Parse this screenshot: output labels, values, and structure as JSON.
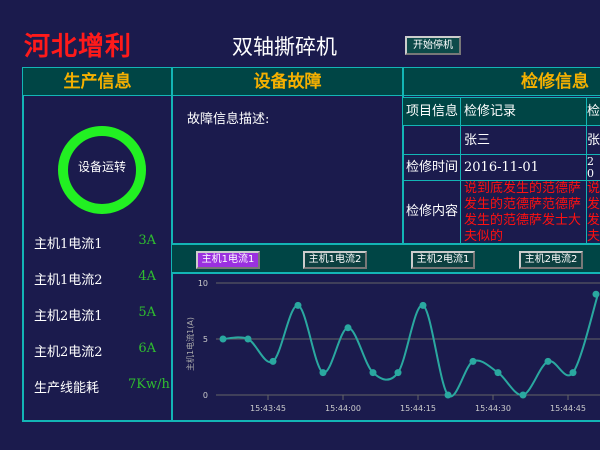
{
  "header": {
    "brand": "河北增利",
    "title": "双轴撕碎机",
    "start_button": "开始停机"
  },
  "sections": {
    "production": "生产信息",
    "fault": "设备故障",
    "maintenance": "检修信息"
  },
  "production": {
    "status": "设备运转",
    "status_color": "#22f022",
    "items": [
      {
        "label": "主机1电流1",
        "value": "3A"
      },
      {
        "label": "主机1电流2",
        "value": "4A"
      },
      {
        "label": "主机2电流1",
        "value": "5A"
      },
      {
        "label": "主机2电流2",
        "value": "6A"
      },
      {
        "label": "生产线能耗",
        "value": "7Kw/h"
      }
    ]
  },
  "fault": {
    "description_label": "故障信息描述:"
  },
  "maintenance": {
    "row_headers": [
      "项目信息",
      "",
      "检修时间",
      "检修内容"
    ],
    "records": [
      {
        "title": "检修记录",
        "person": "张三",
        "time": "2016-11-01",
        "content": "说到底发生的范德萨发生的范德萨范德萨发生的范德萨发士大夫似的"
      },
      {
        "title": "检",
        "person": "张",
        "time": "20",
        "content": "说发发夫"
      }
    ]
  },
  "tabs": [
    {
      "label": "主机1电流1",
      "active": true
    },
    {
      "label": "主机1电流2"
    },
    {
      "label": "主机2电流1"
    },
    {
      "label": "主机2电流2"
    }
  ],
  "chart_data": {
    "type": "line",
    "ylabel": "主机1电流1(A)",
    "ylim": [
      0,
      10
    ],
    "yticks": [
      "0",
      "5",
      "10"
    ],
    "xticks": [
      "15:43:45",
      "15:44:00",
      "15:44:15",
      "15:44:30",
      "15:44:45"
    ],
    "x": [
      "15:43:36",
      "15:43:41",
      "15:43:46",
      "15:43:51",
      "15:43:56",
      "15:44:01",
      "15:44:06",
      "15:44:11",
      "15:44:16",
      "15:44:21",
      "15:44:26",
      "15:44:31",
      "15:44:36",
      "15:44:41",
      "15:44:46",
      "15:44:51"
    ],
    "values": [
      5,
      5,
      3,
      8,
      2,
      6,
      2,
      2,
      8,
      0,
      3,
      2,
      0,
      3,
      2,
      9
    ],
    "color": "#2aa8a0",
    "grid": true
  }
}
